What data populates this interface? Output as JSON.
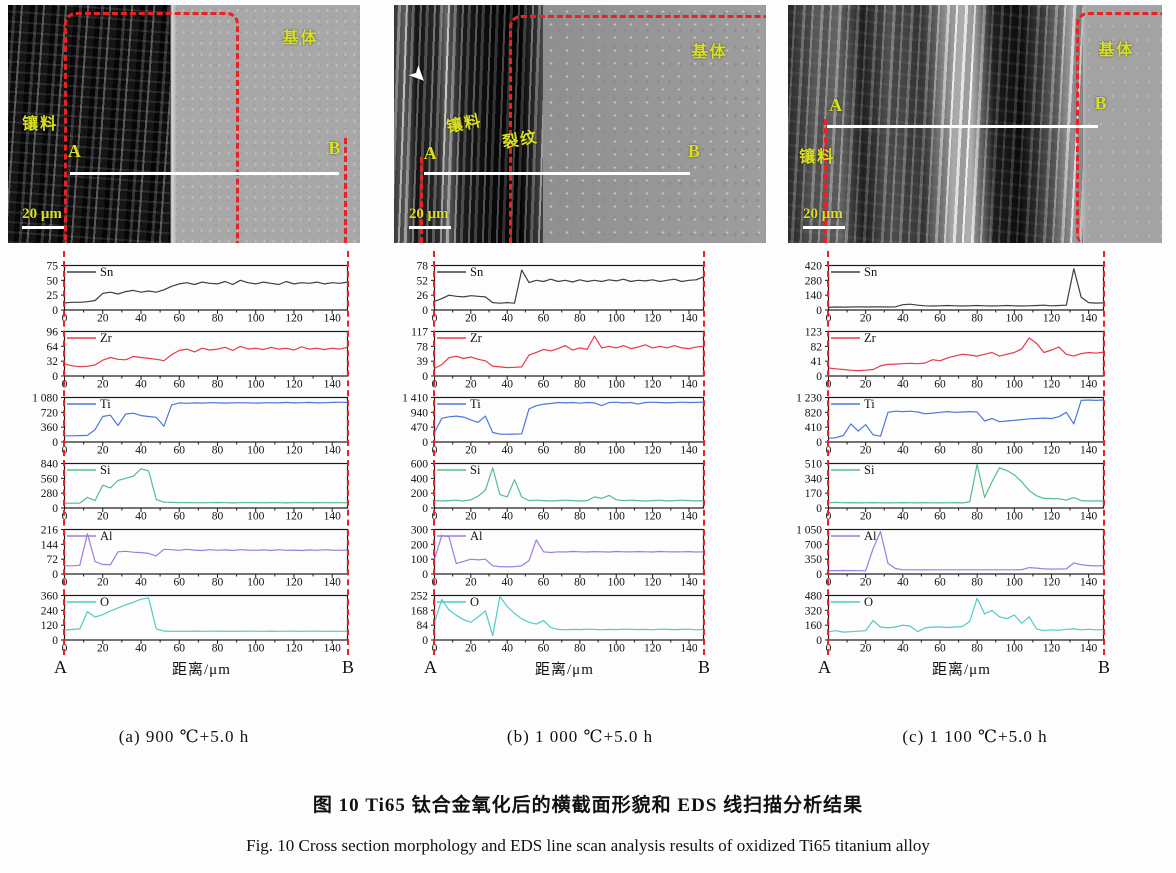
{
  "figure": {
    "caption_zh": "图 10  Ti65 钛合金氧化后的横截面形貌和 EDS 线扫描分析结果",
    "caption_en": "Fig. 10  Cross section morphology and EDS line scan analysis results of oxidized Ti65 titanium alloy"
  },
  "xlabel": "距离/μm",
  "endpoints": {
    "start": "A",
    "end": "B"
  },
  "sem_labels": {
    "matrix": "基体",
    "mount": "镶料",
    "crack": "裂纹",
    "scale": "20 μm"
  },
  "colors": {
    "Sn": "#3f3f3f",
    "Zr": "#e8394b",
    "Ti": "#4d79d8",
    "Si": "#56bd8c",
    "Al": "#9d7ddc",
    "O": "#4fccc4",
    "dashed": "#e82328",
    "sem_label": "#d9e021",
    "scan_line": "#ffffff"
  },
  "chart_data": [
    {
      "panel": "a",
      "type": "line",
      "caption": "(a)  900 ℃+5.0 h",
      "xlabel": "距离/μm",
      "x_start": 0,
      "x_step": 4,
      "xmax": 148,
      "xticks": [
        0,
        20,
        40,
        60,
        80,
        100,
        120,
        140
      ],
      "series": [
        {
          "name": "Sn",
          "yticks": [
            0,
            25,
            50,
            75
          ],
          "ymax": 75,
          "values": [
            12,
            13,
            13,
            14,
            16,
            28,
            30,
            27,
            31,
            33,
            30,
            32,
            30,
            34,
            40,
            44,
            46,
            43,
            47,
            45,
            44,
            48,
            43,
            50,
            46,
            44,
            47,
            45,
            43,
            48,
            44,
            46,
            45,
            47,
            44,
            46,
            45,
            47
          ]
        },
        {
          "name": "Zr",
          "yticks": [
            0,
            32,
            64,
            96
          ],
          "ymax": 96,
          "values": [
            26,
            22,
            20,
            21,
            24,
            34,
            40,
            36,
            35,
            42,
            40,
            38,
            36,
            33,
            46,
            55,
            58,
            52,
            60,
            56,
            58,
            62,
            55,
            64,
            58,
            60,
            57,
            62,
            58,
            60,
            56,
            63,
            58,
            60,
            57,
            60,
            58,
            62
          ]
        },
        {
          "name": "Ti",
          "yticks": [
            0,
            360,
            720,
            1080
          ],
          "ymax": 1080,
          "values": [
            150,
            150,
            155,
            160,
            300,
            620,
            650,
            400,
            680,
            700,
            640,
            620,
            600,
            380,
            900,
            950,
            940,
            950,
            945,
            955,
            950,
            945,
            950,
            955,
            950,
            945,
            950,
            955,
            950,
            960,
            950,
            955,
            960,
            950,
            955,
            960,
            965,
            960
          ]
        },
        {
          "name": "Si",
          "yticks": [
            0,
            280,
            560,
            840
          ],
          "ymax": 840,
          "values": [
            90,
            90,
            92,
            200,
            140,
            430,
            380,
            520,
            560,
            600,
            740,
            700,
            160,
            110,
            105,
            100,
            102,
            100,
            98,
            100,
            103,
            100,
            97,
            100,
            102,
            100,
            98,
            101,
            100,
            97,
            100,
            102,
            99,
            101,
            100,
            98,
            100,
            100
          ]
        },
        {
          "name": "Al",
          "yticks": [
            0,
            72,
            144,
            216
          ],
          "ymax": 216,
          "values": [
            40,
            40,
            42,
            195,
            60,
            46,
            45,
            108,
            110,
            106,
            104,
            100,
            88,
            120,
            118,
            115,
            120,
            116,
            114,
            118,
            115,
            117,
            114,
            118,
            116,
            115,
            117,
            114,
            118,
            115,
            116,
            114,
            117,
            115,
            118,
            116,
            115,
            116
          ]
        },
        {
          "name": "O",
          "yticks": [
            0,
            120,
            240,
            360
          ],
          "ymax": 360,
          "values": [
            80,
            85,
            90,
            230,
            185,
            205,
            235,
            260,
            285,
            305,
            330,
            340,
            90,
            72,
            70,
            71,
            70,
            72,
            70,
            71,
            72,
            70,
            71,
            70,
            72,
            71,
            70,
            72,
            70,
            71,
            72,
            70,
            71,
            72,
            70,
            71,
            70,
            72
          ]
        }
      ]
    },
    {
      "panel": "b",
      "type": "line",
      "caption": "(b)  1 000 ℃+5.0 h",
      "xlabel": "距离/μm",
      "x_start": 0,
      "x_step": 4,
      "xmax": 148,
      "xticks": [
        0,
        20,
        40,
        60,
        80,
        100,
        120,
        140
      ],
      "series": [
        {
          "name": "Sn",
          "yticks": [
            0,
            26,
            52,
            78
          ],
          "ymax": 78,
          "values": [
            15,
            20,
            26,
            24,
            23,
            25,
            24,
            23,
            13,
            12,
            13,
            12,
            70,
            48,
            52,
            50,
            54,
            50,
            52,
            49,
            53,
            50,
            52,
            50,
            53,
            51,
            54,
            50,
            52,
            51,
            53,
            50,
            52,
            54,
            50,
            52,
            53,
            58
          ]
        },
        {
          "name": "Zr",
          "yticks": [
            0,
            39,
            78,
            117
          ],
          "ymax": 117,
          "values": [
            20,
            30,
            48,
            52,
            46,
            50,
            44,
            40,
            26,
            24,
            22,
            23,
            24,
            55,
            62,
            70,
            66,
            72,
            80,
            68,
            74,
            70,
            105,
            74,
            78,
            74,
            80,
            72,
            76,
            82,
            74,
            78,
            74,
            80,
            74,
            72,
            76,
            78
          ]
        },
        {
          "name": "Ti",
          "yticks": [
            0,
            470,
            940,
            1410
          ],
          "ymax": 1410,
          "values": [
            300,
            750,
            800,
            820,
            790,
            700,
            620,
            820,
            300,
            250,
            245,
            250,
            260,
            1050,
            1150,
            1200,
            1220,
            1250,
            1240,
            1250,
            1230,
            1250,
            1240,
            1150,
            1250,
            1260,
            1240,
            1250,
            1200,
            1250,
            1260,
            1250,
            1240,
            1250,
            1260,
            1250,
            1255,
            1260
          ]
        },
        {
          "name": "Si",
          "yticks": [
            0,
            200,
            400,
            600
          ],
          "ymax": 600,
          "values": [
            100,
            95,
            100,
            105,
            95,
            110,
            160,
            240,
            540,
            180,
            150,
            380,
            150,
            100,
            105,
            100,
            95,
            100,
            105,
            100,
            95,
            100,
            150,
            130,
            170,
            110,
            100,
            105,
            100,
            95,
            100,
            105,
            95,
            100,
            105,
            100,
            95,
            100
          ]
        },
        {
          "name": "Al",
          "yticks": [
            0,
            100,
            200,
            300
          ],
          "ymax": 300,
          "values": [
            100,
            260,
            250,
            70,
            85,
            100,
            95,
            100,
            55,
            50,
            48,
            50,
            55,
            90,
            230,
            150,
            145,
            150,
            148,
            152,
            150,
            148,
            151,
            150,
            148,
            152,
            150,
            149,
            151,
            150,
            148,
            152,
            150,
            149,
            150,
            151,
            148,
            150
          ]
        },
        {
          "name": "O",
          "yticks": [
            0,
            84,
            168,
            252
          ],
          "ymax": 252,
          "values": [
            100,
            230,
            170,
            140,
            115,
            100,
            130,
            165,
            25,
            245,
            190,
            150,
            120,
            100,
            90,
            110,
            70,
            60,
            58,
            60,
            59,
            61,
            60,
            58,
            60,
            59,
            61,
            60,
            59,
            60,
            58,
            61,
            60,
            59,
            60,
            61,
            58,
            60
          ]
        }
      ]
    },
    {
      "panel": "c",
      "type": "line",
      "caption": "(c)  1 100 ℃+5.0 h",
      "xlabel": "距离/μm",
      "x_start": 0,
      "x_step": 4,
      "xmax": 148,
      "xticks": [
        0,
        20,
        40,
        60,
        80,
        100,
        120,
        140
      ],
      "series": [
        {
          "name": "Sn",
          "yticks": [
            0,
            140,
            280,
            420
          ],
          "ymax": 420,
          "values": [
            25,
            28,
            27,
            28,
            30,
            28,
            29,
            30,
            28,
            30,
            50,
            55,
            45,
            40,
            38,
            40,
            42,
            40,
            38,
            40,
            42,
            40,
            38,
            40,
            42,
            40,
            38,
            40,
            42,
            45,
            40,
            42,
            45,
            390,
            120,
            70,
            65,
            68
          ]
        },
        {
          "name": "Zr",
          "yticks": [
            0,
            41,
            82,
            123
          ],
          "ymax": 123,
          "values": [
            22,
            20,
            18,
            16,
            15,
            16,
            18,
            28,
            32,
            33,
            34,
            35,
            34,
            36,
            45,
            42,
            50,
            55,
            60,
            58,
            55,
            60,
            65,
            55,
            60,
            65,
            75,
            105,
            90,
            65,
            72,
            80,
            60,
            55,
            62,
            65,
            63,
            66
          ]
        },
        {
          "name": "Ti",
          "yticks": [
            0,
            410,
            820,
            1230
          ],
          "ymax": 1230,
          "values": [
            100,
            120,
            180,
            500,
            300,
            480,
            200,
            160,
            820,
            850,
            840,
            850,
            830,
            780,
            800,
            820,
            840,
            820,
            830,
            840,
            830,
            580,
            650,
            560,
            580,
            600,
            620,
            640,
            650,
            660,
            650,
            700,
            820,
            500,
            1150,
            1160,
            1150,
            1160
          ]
        },
        {
          "name": "Si",
          "yticks": [
            0,
            170,
            340,
            510
          ],
          "ymax": 510,
          "values": [
            60,
            65,
            60,
            62,
            58,
            60,
            62,
            60,
            58,
            60,
            62,
            60,
            58,
            62,
            60,
            58,
            60,
            62,
            58,
            70,
            500,
            120,
            300,
            460,
            430,
            380,
            300,
            200,
            140,
            110,
            108,
            105,
            90,
            120,
            85,
            80,
            82,
            80
          ]
        },
        {
          "name": "Al",
          "yticks": [
            0,
            350,
            700,
            1050
          ],
          "ymax": 1050,
          "values": [
            80,
            80,
            82,
            80,
            78,
            80,
            600,
            1000,
            250,
            130,
            100,
            98,
            100,
            97,
            99,
            100,
            98,
            100,
            99,
            100,
            98,
            100,
            99,
            100,
            98,
            100,
            102,
            150,
            140,
            120,
            115,
            118,
            120,
            260,
            220,
            200,
            190,
            195
          ]
        },
        {
          "name": "O",
          "yticks": [
            0,
            160,
            320,
            480
          ],
          "ymax": 480,
          "values": [
            90,
            100,
            85,
            90,
            95,
            100,
            210,
            140,
            130,
            140,
            160,
            150,
            90,
            130,
            140,
            140,
            135,
            140,
            145,
            200,
            450,
            280,
            320,
            250,
            230,
            270,
            180,
            250,
            120,
            100,
            110,
            105,
            115,
            120,
            110,
            115,
            110,
            112
          ]
        }
      ]
    }
  ]
}
